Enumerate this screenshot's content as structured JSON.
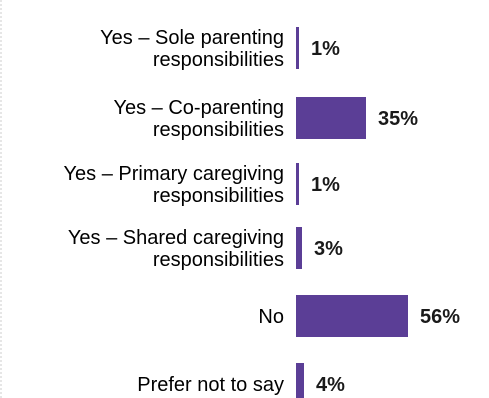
{
  "chart_data": {
    "type": "bar",
    "orientation": "horizontal",
    "categories": [
      [
        "Yes – Sole parenting",
        "responsibilities"
      ],
      [
        "Yes – Co-parenting",
        "responsibilities"
      ],
      [
        "Yes – Primary caregiving",
        "responsibilities"
      ],
      [
        "Yes – Shared caregiving",
        "responsibilities"
      ],
      [
        "No"
      ],
      [
        "Prefer not to say"
      ]
    ],
    "values": [
      1,
      35,
      1,
      3,
      56,
      4
    ],
    "value_labels": [
      "1%",
      "35%",
      "1%",
      "3%",
      "56%",
      "4%"
    ],
    "xlim": [
      0,
      56
    ],
    "bar_color": "#5b3e96",
    "title": "",
    "xlabel": "",
    "ylabel": ""
  }
}
